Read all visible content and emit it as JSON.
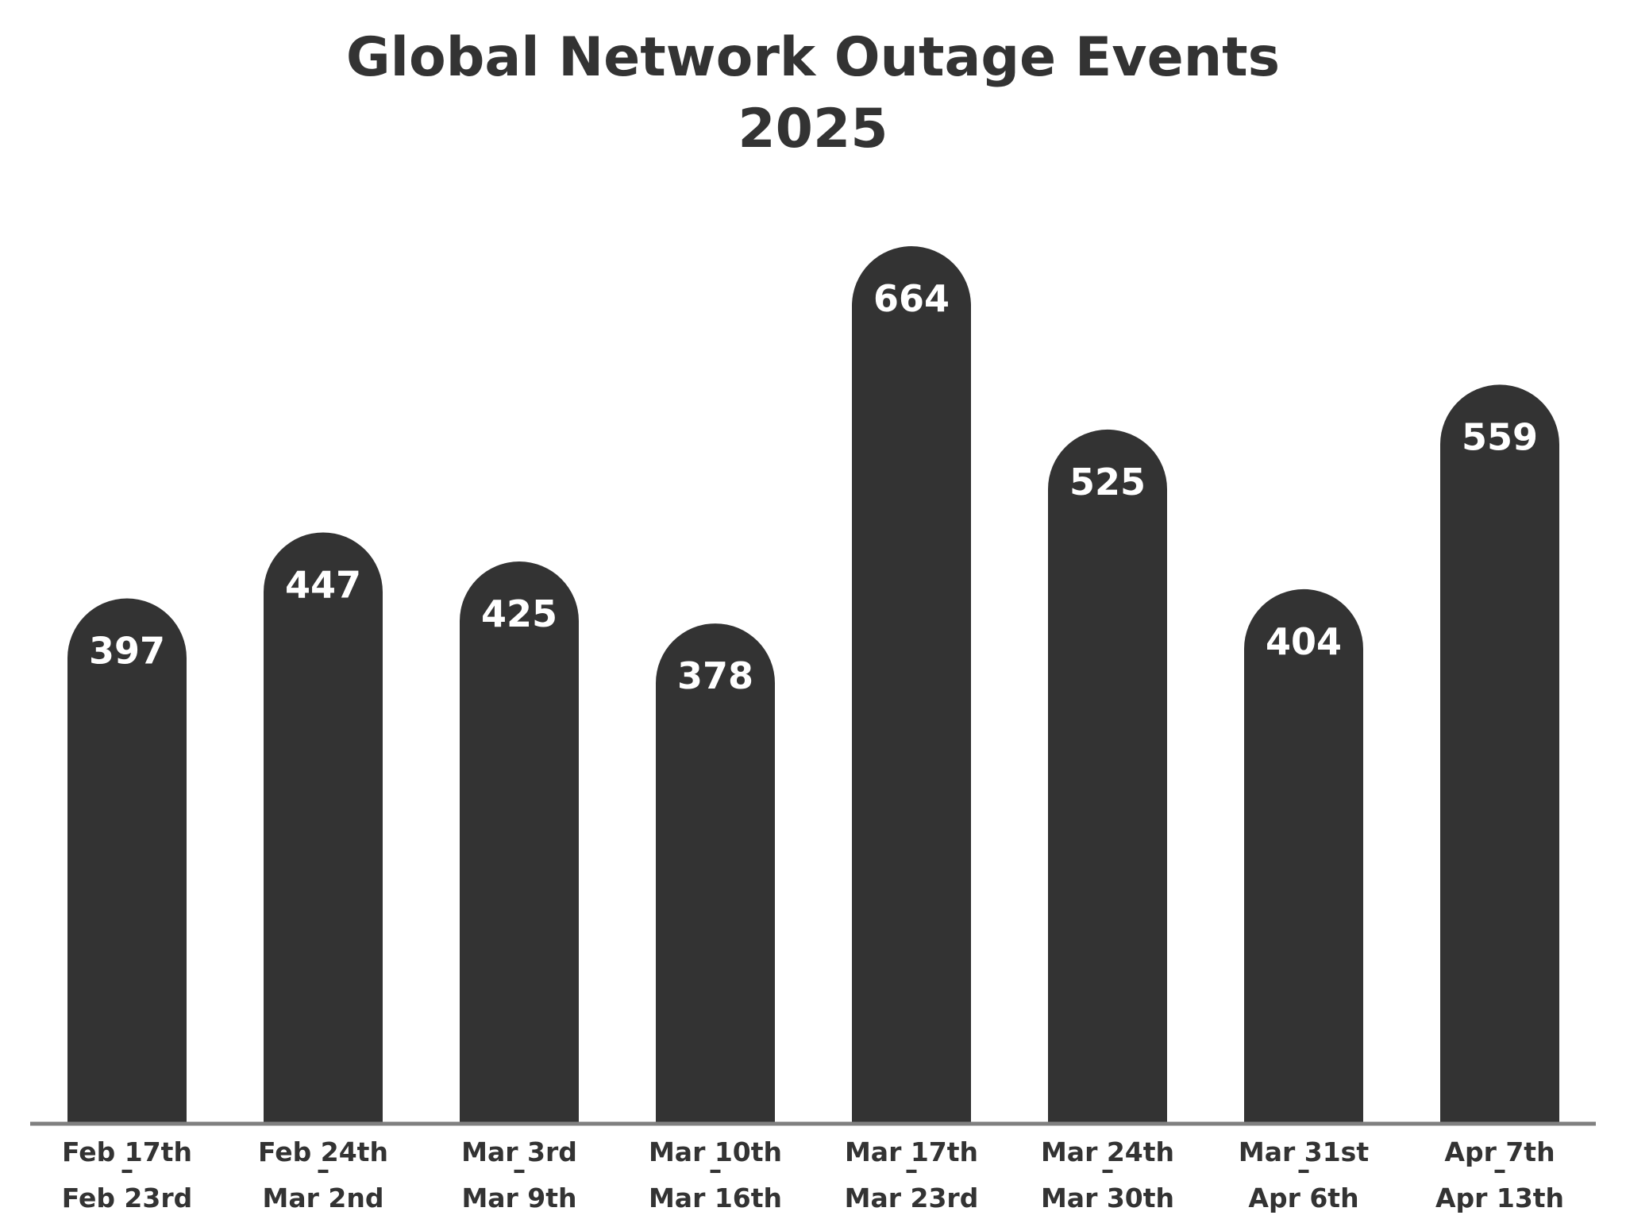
{
  "chart_data": {
    "type": "bar",
    "title": "Global Network Outage Events",
    "subtitle": "2025",
    "xlabel": "",
    "ylabel": "",
    "categories": [
      [
        "Feb 17th",
        "–",
        "Feb 23rd"
      ],
      [
        "Feb 24th",
        "–",
        "Mar 2nd"
      ],
      [
        "Mar 3rd",
        "–",
        "Mar 9th"
      ],
      [
        "Mar 10th",
        "–",
        "Mar 16th"
      ],
      [
        "Mar 17th",
        "–",
        "Mar 23rd"
      ],
      [
        "Mar 24th",
        "–",
        "Mar 30th"
      ],
      [
        "Mar 31st",
        "–",
        "Apr 6th"
      ],
      [
        "Apr 7th",
        "–",
        "Apr 13th"
      ]
    ],
    "values": [
      397,
      447,
      425,
      378,
      664,
      525,
      404,
      559
    ],
    "ylim": [
      0,
      730
    ],
    "grid": false,
    "legend": "none",
    "bar_shape": "rounded-top",
    "value_labels": "inside-top",
    "colors": {
      "bar": "#333333",
      "axis": "#808080",
      "text": "#333333",
      "value_label": "#ffffff",
      "background": "#ffffff"
    }
  }
}
